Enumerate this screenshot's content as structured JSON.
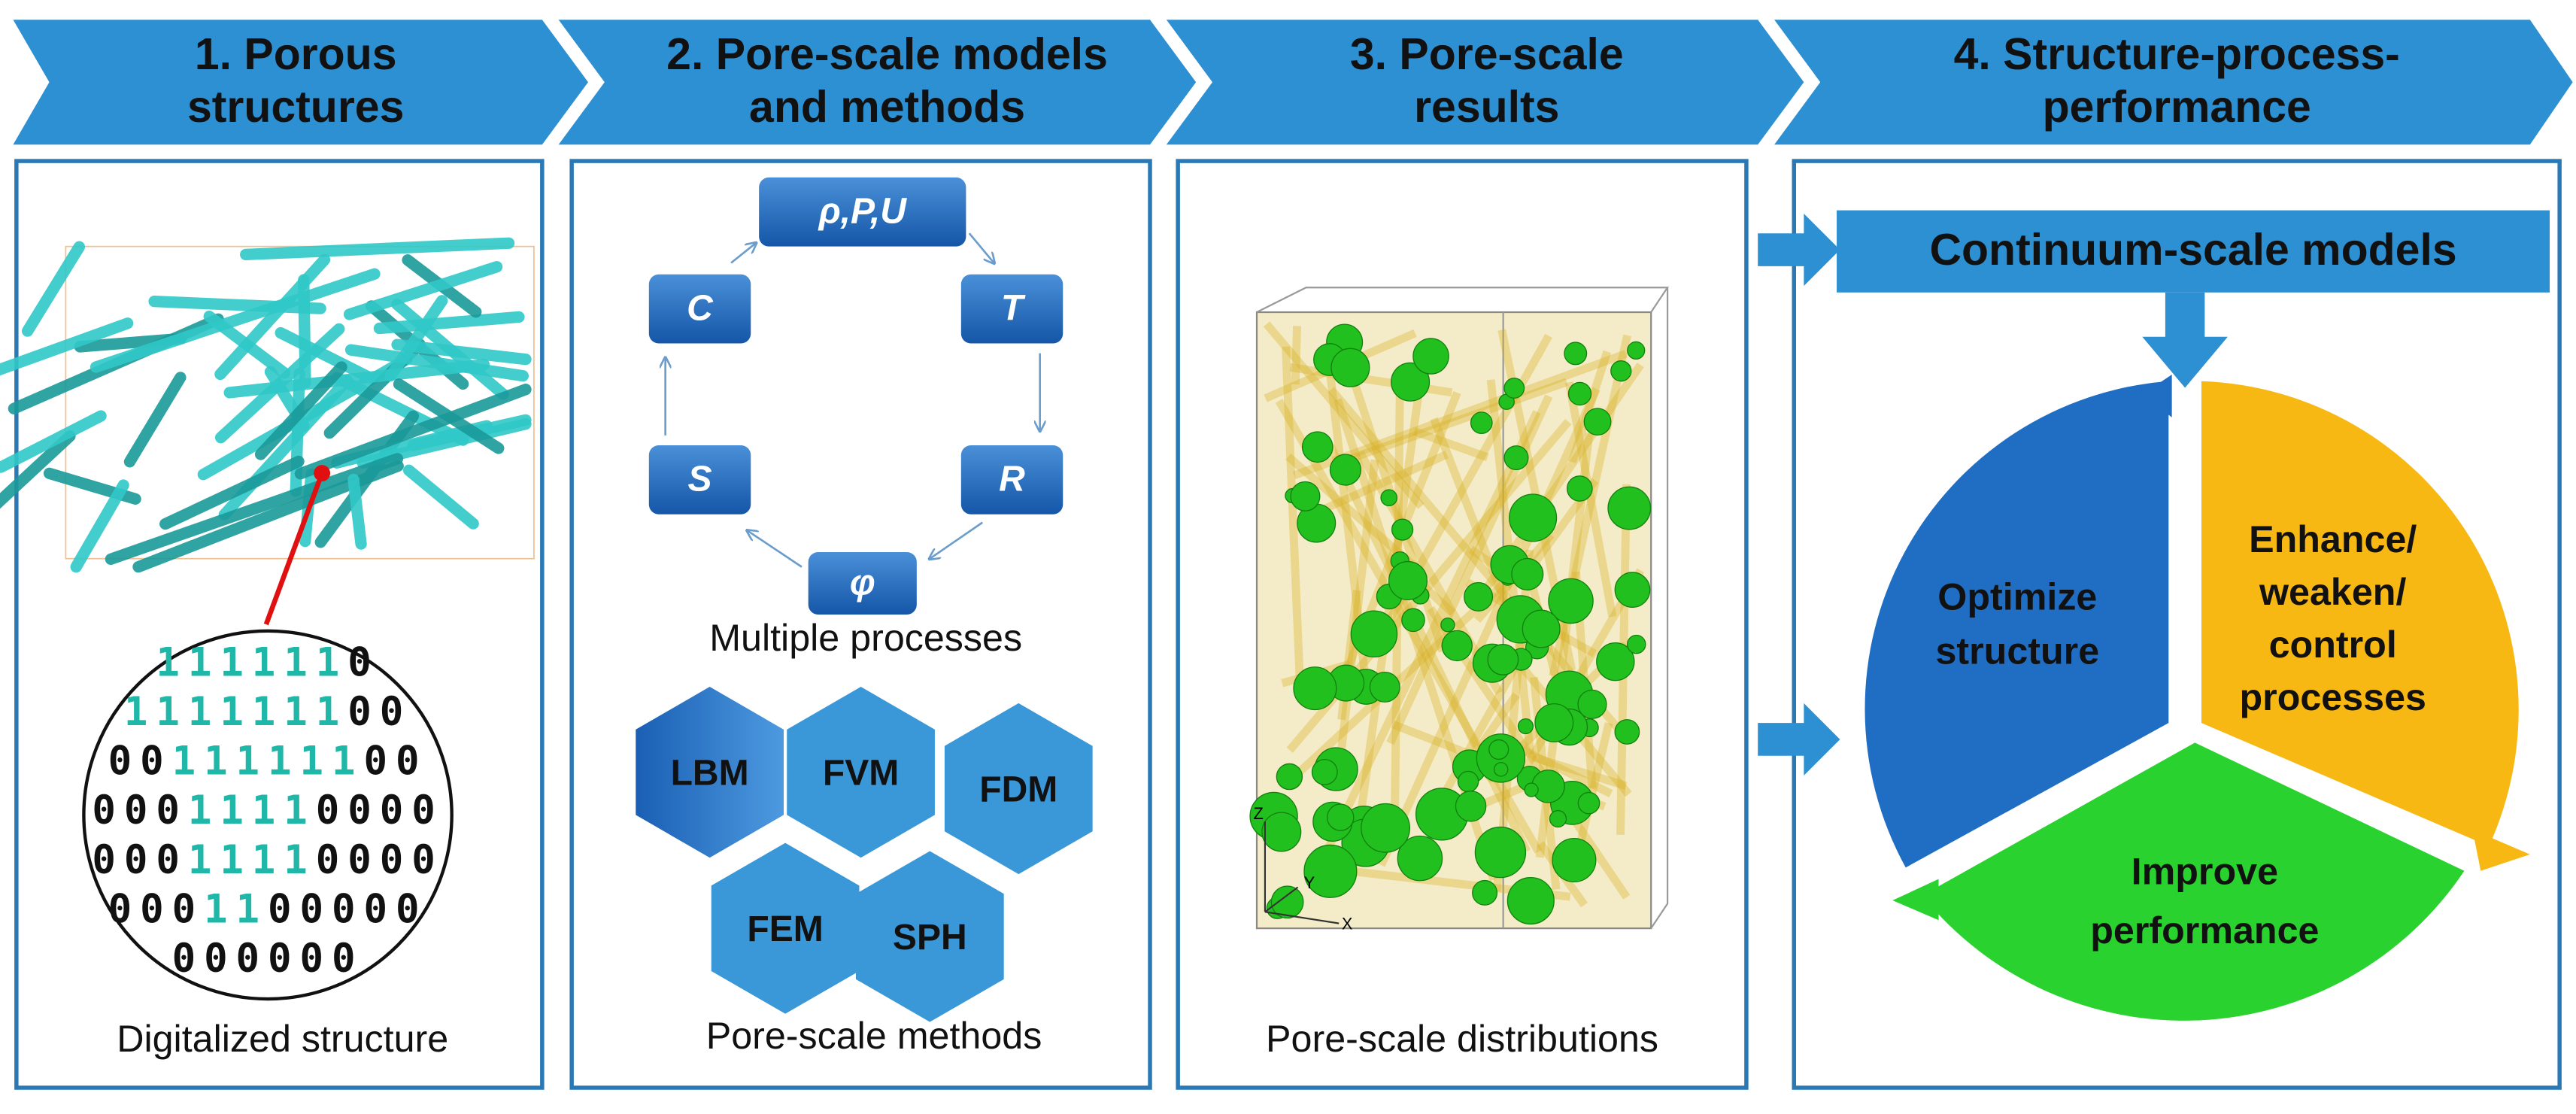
{
  "header": {
    "steps": [
      {
        "lines": [
          "1. Porous",
          "structures"
        ]
      },
      {
        "lines": [
          "2. Pore-scale models",
          "and methods"
        ]
      },
      {
        "lines": [
          "3. Pore-scale",
          "results"
        ]
      },
      {
        "lines": [
          "4. Structure-process-",
          "performance"
        ]
      }
    ]
  },
  "panel1": {
    "binary_rows": [
      "1111110",
      "111111100",
      "0011111100",
      "00011110000",
      "00011110000",
      "0001100000",
      "000000"
    ],
    "caption": "Digitalized structure"
  },
  "panel2": {
    "cycle": {
      "nodes": [
        "ρ,P,U",
        "T",
        "R",
        "φ",
        "S",
        "C"
      ]
    },
    "cycle_caption": "Multiple processes",
    "methods": [
      "LBM",
      "FVM",
      "FDM",
      "FEM",
      "SPH"
    ],
    "methods_caption": "Pore-scale methods"
  },
  "panel3": {
    "axes": [
      "Z",
      "Y",
      "X"
    ],
    "caption": "Pore-scale distributions"
  },
  "panel4": {
    "banner": "Continuum-scale models",
    "segments": [
      {
        "lines": [
          "Optimize",
          "structure"
        ]
      },
      {
        "lines": [
          "Enhance/",
          "weaken/",
          "control",
          "processes"
        ]
      },
      {
        "lines": [
          "Improve",
          "performance"
        ]
      }
    ]
  }
}
